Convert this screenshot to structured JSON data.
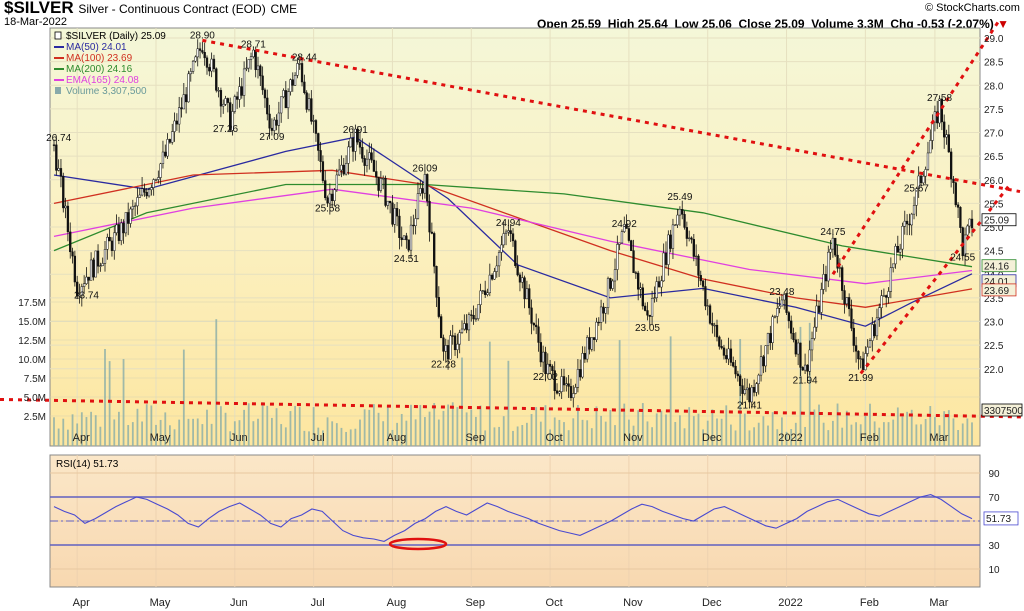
{
  "header": {
    "symbol": "$SILVER",
    "name": "Silver - Continuous Contract (EOD)",
    "exchange": "CME",
    "date": "18-Mar-2022",
    "open_label": "Open",
    "open": "25.59",
    "high_label": "High",
    "high": "25.64",
    "low_label": "Low",
    "low": "25.06",
    "close_label": "Close",
    "close": "25.09",
    "volume_label": "Volume",
    "volume": "3.3M",
    "chg_label": "Chg",
    "chg": "-0.53 (-2.07%)",
    "brand": "© StockCharts.com"
  },
  "legend": [
    {
      "text": "$SILVER (Daily) 25.09",
      "color": "#000000",
      "icon": "candle-icon"
    },
    {
      "text": "MA(50) 24.01",
      "color": "#2a2aa0",
      "icon": "line-icon"
    },
    {
      "text": "MA(100) 23.69",
      "color": "#d03020",
      "icon": "line-icon"
    },
    {
      "text": "MA(200) 24.16",
      "color": "#2e8b2e",
      "icon": "line-icon"
    },
    {
      "text": "EMA(165) 24.08",
      "color": "#e040e0",
      "icon": "line-icon"
    },
    {
      "text": "Volume 3,307,500",
      "color": "#88aaaa",
      "icon": "volume-icon"
    }
  ],
  "chart_data": [
    {
      "type": "candlestick",
      "title": "$SILVER (Daily) 25.09",
      "price_axis": {
        "min": 21.0,
        "max": 29.0,
        "ticks": [
          "29.0",
          "28.5",
          "28.0",
          "27.5",
          "27.0",
          "26.5",
          "26.0",
          "25.5",
          "25.0",
          "24.5",
          "24.0",
          "23.5",
          "23.0",
          "22.5",
          "22.0"
        ]
      },
      "volume_axis": {
        "ticks": [
          "17.5M",
          "15.0M",
          "12.5M",
          "10.0M",
          "7.5M",
          "5.0M",
          "2.5M"
        ]
      },
      "x_labels": [
        "Apr",
        "May",
        "Jun",
        "Jul",
        "Aug",
        "Sep",
        "Oct",
        "Nov",
        "Dec",
        "2022",
        "Feb",
        "Mar"
      ],
      "price_path": [
        {
          "t": 0,
          "v": 26.74
        },
        {
          "t": 10,
          "v": 23.74
        },
        {
          "t": 30,
          "v": 25.0
        },
        {
          "t": 48,
          "v": 26.5
        },
        {
          "t": 64,
          "v": 28.9
        },
        {
          "t": 76,
          "v": 27.26
        },
        {
          "t": 86,
          "v": 28.71
        },
        {
          "t": 94,
          "v": 27.09
        },
        {
          "t": 106,
          "v": 28.44
        },
        {
          "t": 118,
          "v": 25.58
        },
        {
          "t": 130,
          "v": 26.91
        },
        {
          "t": 142,
          "v": 25.8
        },
        {
          "t": 152,
          "v": 24.51
        },
        {
          "t": 160,
          "v": 26.09
        },
        {
          "t": 168,
          "v": 22.28
        },
        {
          "t": 180,
          "v": 23.0
        },
        {
          "t": 196,
          "v": 24.94
        },
        {
          "t": 212,
          "v": 22.02
        },
        {
          "t": 222,
          "v": 21.41
        },
        {
          "t": 238,
          "v": 23.5
        },
        {
          "t": 246,
          "v": 24.92
        },
        {
          "t": 256,
          "v": 23.05
        },
        {
          "t": 270,
          "v": 25.49
        },
        {
          "t": 286,
          "v": 22.6
        },
        {
          "t": 300,
          "v": 21.41
        },
        {
          "t": 314,
          "v": 23.48
        },
        {
          "t": 324,
          "v": 21.94
        },
        {
          "t": 336,
          "v": 24.75
        },
        {
          "t": 348,
          "v": 21.99
        },
        {
          "t": 364,
          "v": 24.5
        },
        {
          "t": 372,
          "v": 25.67
        },
        {
          "t": 382,
          "v": 27.58
        },
        {
          "t": 388,
          "v": 26.0
        },
        {
          "t": 392,
          "v": 24.55
        },
        {
          "t": 396,
          "v": 25.09
        }
      ],
      "moving_averages": [
        {
          "name": "MA(50)",
          "color": "#2a2aa0",
          "points": [
            [
              0,
              26.1
            ],
            [
              40,
              25.8
            ],
            [
              100,
              26.6
            ],
            [
              130,
              26.9
            ],
            [
              170,
              25.6
            ],
            [
              200,
              24.2
            ],
            [
              240,
              23.5
            ],
            [
              280,
              23.7
            ],
            [
              320,
              23.3
            ],
            [
              350,
              22.9
            ],
            [
              370,
              23.4
            ],
            [
              396,
              24.01
            ]
          ]
        },
        {
          "name": "MA(100)",
          "color": "#d03020",
          "points": [
            [
              0,
              25.5
            ],
            [
              60,
              26.1
            ],
            [
              120,
              26.2
            ],
            [
              160,
              25.9
            ],
            [
              200,
              25.2
            ],
            [
              240,
              24.5
            ],
            [
              280,
              23.9
            ],
            [
              320,
              23.5
            ],
            [
              350,
              23.3
            ],
            [
              396,
              23.69
            ]
          ]
        },
        {
          "name": "MA(200)",
          "color": "#2e8b2e",
          "points": [
            [
              0,
              24.5
            ],
            [
              40,
              25.3
            ],
            [
              100,
              25.9
            ],
            [
              160,
              25.9
            ],
            [
              220,
              25.7
            ],
            [
              280,
              25.3
            ],
            [
              340,
              24.6
            ],
            [
              396,
              24.16
            ]
          ]
        },
        {
          "name": "EMA(165)",
          "color": "#e040e0",
          "points": [
            [
              0,
              24.8
            ],
            [
              60,
              25.4
            ],
            [
              120,
              25.8
            ],
            [
              180,
              25.4
            ],
            [
              240,
              24.7
            ],
            [
              300,
              24.1
            ],
            [
              350,
              23.8
            ],
            [
              396,
              24.08
            ]
          ]
        }
      ],
      "annotations": [
        "26.74",
        "23.74",
        "28.90",
        "27.26",
        "28.71",
        "27.09",
        "28.44",
        "25.58",
        "26.91",
        "24.51",
        "26.09",
        "22.28",
        "24.94",
        "22.02",
        "24.92",
        "23.05",
        "25.49",
        "21.41",
        "23.48",
        "21.94",
        "24.75",
        "21.99",
        "25.67",
        "27.58",
        "24.55"
      ],
      "right_labels": [
        "25.09",
        "24.16",
        "24.01",
        "23.69",
        "3307500"
      ],
      "trendlines": [
        "downtrend from May high",
        "rising channel from Feb low",
        "support line"
      ]
    },
    {
      "type": "line",
      "title": "RSI(14) 51.73",
      "yticks": [
        "90",
        "70",
        "50",
        "30",
        "10"
      ],
      "ylim": [
        0,
        100
      ],
      "value_label": "51.73",
      "x_labels": [
        "Apr",
        "May",
        "Jun",
        "Jul",
        "Aug",
        "Sep",
        "Oct",
        "Nov",
        "Dec",
        "2022",
        "Feb",
        "Mar"
      ],
      "values": [
        62,
        58,
        55,
        48,
        52,
        57,
        62,
        66,
        70,
        68,
        64,
        60,
        55,
        48,
        45,
        52,
        58,
        62,
        65,
        60,
        55,
        48,
        45,
        52,
        55,
        60,
        58,
        50,
        42,
        38,
        36,
        35,
        33,
        38,
        42,
        48,
        52,
        58,
        62,
        58,
        55,
        60,
        65,
        62,
        58,
        55,
        52,
        48,
        45,
        42,
        40,
        38,
        42,
        46,
        50,
        55,
        60,
        64,
        62,
        58,
        55,
        52,
        50,
        55,
        60,
        62,
        58,
        54,
        50,
        46,
        44,
        48,
        52,
        58,
        62,
        66,
        68,
        64,
        60,
        56,
        54,
        58,
        62,
        66,
        70,
        72,
        68,
        62,
        56,
        52
      ]
    }
  ]
}
